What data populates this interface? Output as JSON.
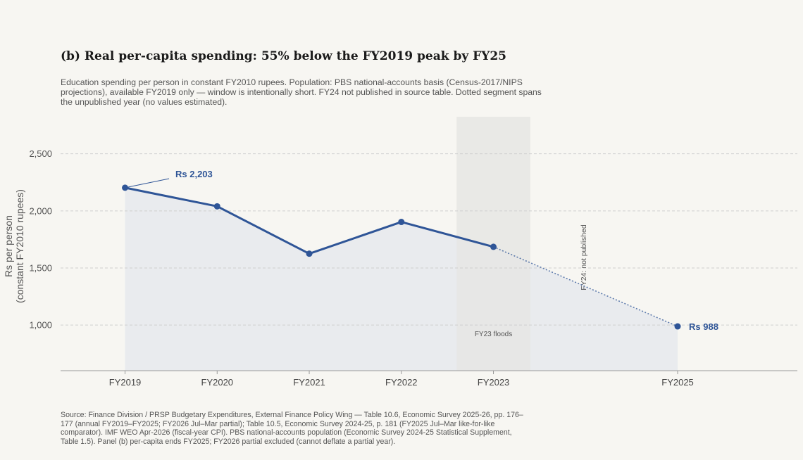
{
  "title": "(b)  Real per-capita spending: 55% below the FY2019 peak by FY25",
  "subtitle": "Education spending per person in constant FY2010 rupees. Population: PBS national-accounts basis (Census-2017/NIPS projections), available FY2019 only — window is intentionally short. FY24 not published in source table. Dotted segment spans the unpublished year (no values estimated).",
  "source": "Source: Finance Division / PRSP Budgetary Expenditures, External Finance Policy Wing — Table 10.6, Economic Survey 2025-26, pp. 176–177 (annual FY2019–FY2025; FY2026 Jul–Mar partial); Table 10.5, Economic Survey 2024-25, p. 181 (FY2025 Jul–Mar like-for-like comparator). IMF WEO Apr-2026 (fiscal-year CPI). PBS national-accounts population (Economic Survey 2024-25 Statistical Supplement, Table 1.5). Panel (b) per-capita ends FY2025; FY2026 partial excluded (cannot deflate a partial year).",
  "colors": {
    "line": "#2f5597",
    "area": "#e9ebee",
    "band": "#e6e6e4",
    "grid": "#cfcfcf",
    "axis": "#999999"
  },
  "chart_data": {
    "type": "line",
    "x": [
      "FY2019",
      "FY2020",
      "FY2021",
      "FY2022",
      "FY2023",
      "FY2025"
    ],
    "x_years": [
      2019,
      2020,
      2021,
      2022,
      2023,
      2025
    ],
    "xlim": [
      2018.3,
      2026.3
    ],
    "series": [
      {
        "values": [
          2203,
          2040,
          1625,
          1903,
          1685,
          988
        ]
      }
    ],
    "dotted_segment": {
      "from": "FY2023",
      "to": "FY2025"
    },
    "ylabel": "Rs per person\n(constant FY2010 rupees)",
    "yticks": [
      1000,
      1500,
      2000,
      2500
    ],
    "ytick_labels": [
      "1,000",
      "1,500",
      "2,000",
      "2,500"
    ],
    "ylim": [
      600,
      2800
    ],
    "grid": "horizontal dashed",
    "annotations": [
      {
        "text": "Rs 2,203",
        "at": "FY2019"
      },
      {
        "text": "Rs 988",
        "at": "FY2025"
      }
    ],
    "shaded_band": {
      "from": 2022.6,
      "to": 2023.4,
      "label": "FY23 floods"
    },
    "vertical_note": {
      "text": "FY24: not published",
      "at": 2024
    }
  }
}
